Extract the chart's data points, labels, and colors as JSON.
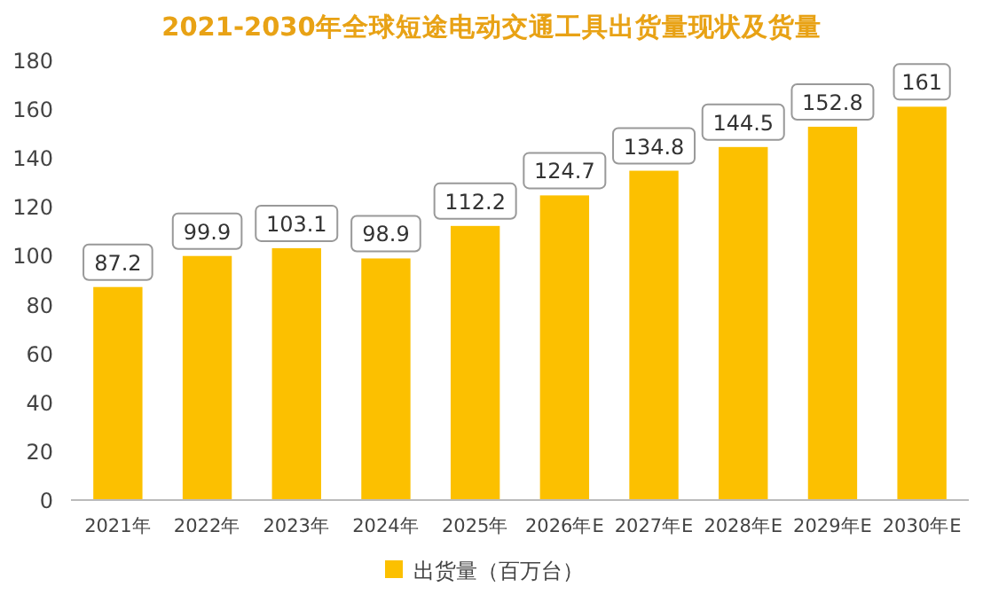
{
  "chart_data": {
    "type": "bar",
    "title": "2021-2030年全球短途电动交通工具出货量现状及货量",
    "categories": [
      "2021年",
      "2022年",
      "2023年",
      "2024年",
      "2025年",
      "2026年E",
      "2027年E",
      "2028年E",
      "2029年E",
      "2030年E"
    ],
    "series": [
      {
        "name": "出货量（百万台）",
        "color": "#fcc000",
        "values": [
          87.2,
          99.9,
          103.1,
          98.9,
          112.2,
          124.7,
          134.8,
          144.5,
          152.8,
          161
        ]
      }
    ],
    "ylim": [
      0,
      180
    ],
    "yticks": [
      0,
      20,
      40,
      60,
      80,
      100,
      120,
      140,
      160,
      180
    ],
    "data_labels": true,
    "legend": "bottom",
    "grid": false
  }
}
